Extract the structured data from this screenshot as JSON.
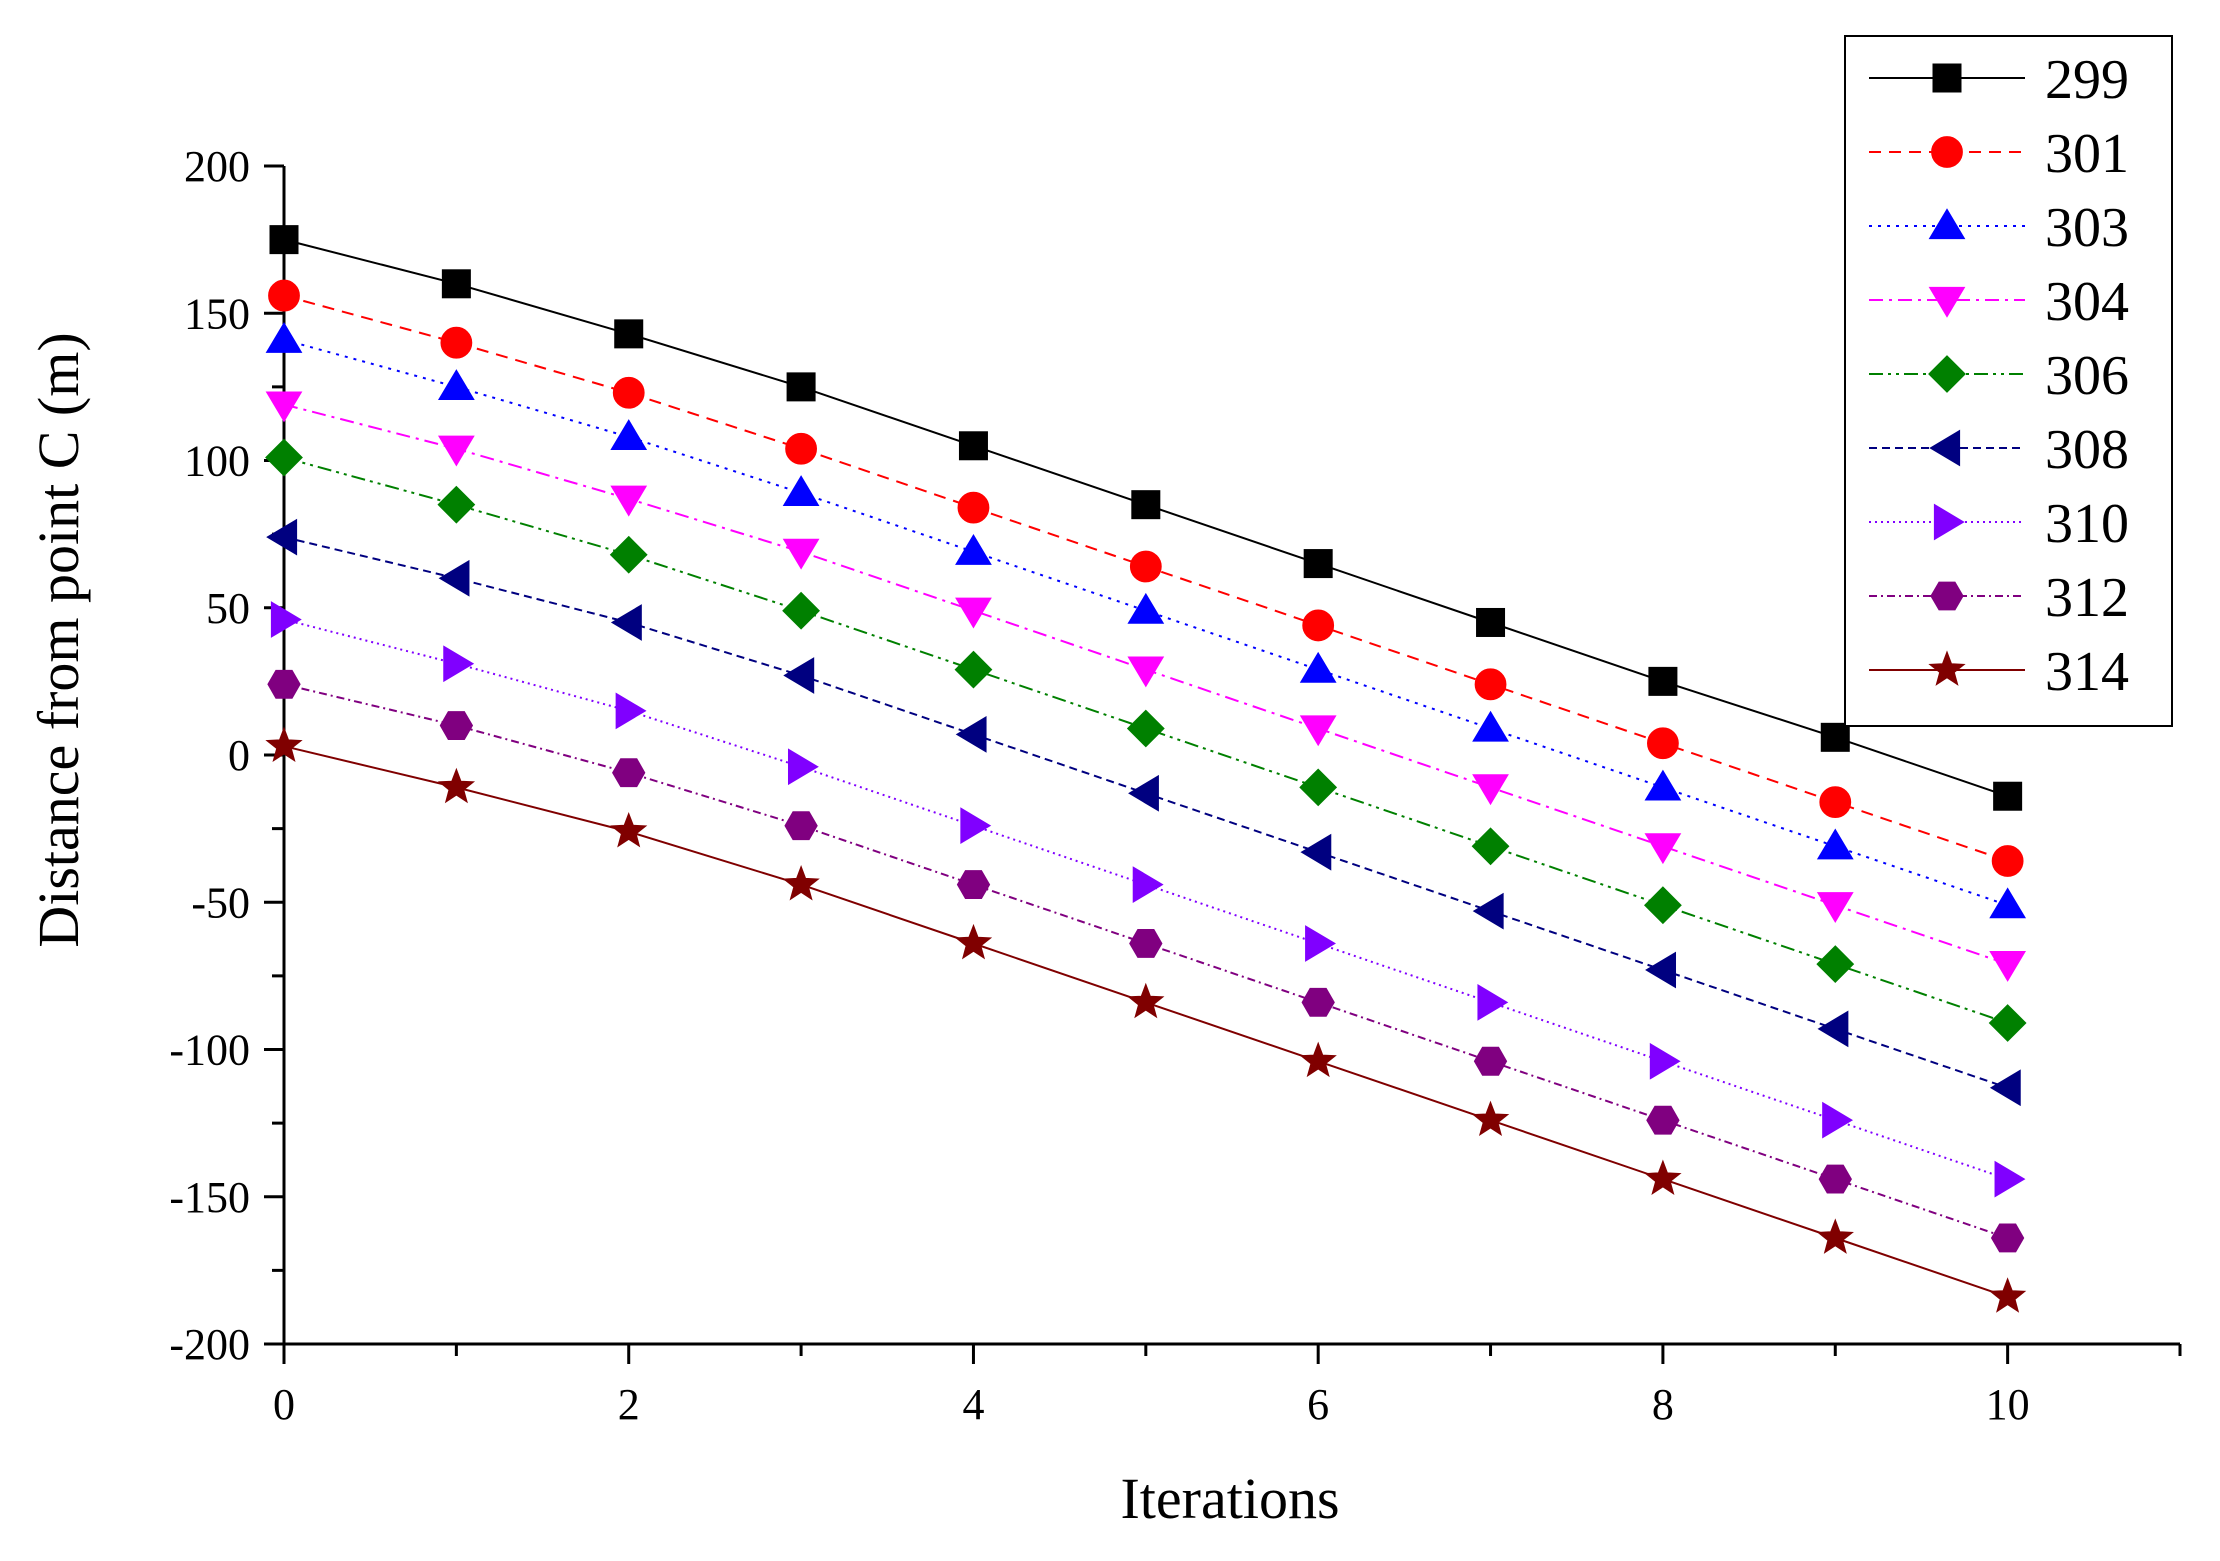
{
  "chart_data": {
    "type": "line",
    "title": "",
    "xlabel": "Iterations",
    "ylabel": "Distance from point C (m)",
    "xlim": [
      0,
      11
    ],
    "ylim": [
      -200,
      200
    ],
    "xticks": [
      0,
      2,
      4,
      6,
      8,
      10
    ],
    "yticks": [
      200,
      150,
      100,
      50,
      0,
      -50,
      -100,
      -150,
      -200
    ],
    "grid": false,
    "legend_position": "top-right",
    "x": [
      0,
      1,
      2,
      3,
      4,
      5,
      6,
      7,
      8,
      9,
      10
    ],
    "series": [
      {
        "name": "299",
        "color": "#000000",
        "marker": "square",
        "line": "solid",
        "values": [
          175,
          160,
          143,
          125,
          105,
          85,
          65,
          45,
          25,
          6,
          -14
        ]
      },
      {
        "name": "301",
        "color": "#ff0000",
        "marker": "circle",
        "line": "dash",
        "values": [
          156,
          140,
          123,
          104,
          84,
          64,
          44,
          24,
          4,
          -16,
          -36
        ]
      },
      {
        "name": "303",
        "color": "#0000ff",
        "marker": "triangle-up",
        "line": "dot",
        "values": [
          141,
          125,
          108,
          89,
          69,
          49,
          29,
          9,
          -11,
          -31,
          -51
        ]
      },
      {
        "name": "304",
        "color": "#ff00ff",
        "marker": "triangle-down",
        "line": "dashdot",
        "values": [
          119,
          104,
          87,
          69,
          49,
          29,
          9,
          -11,
          -31,
          -51,
          -71
        ]
      },
      {
        "name": "306",
        "color": "#008000",
        "marker": "diamond",
        "line": "dashdotdot",
        "values": [
          101,
          85,
          68,
          49,
          29,
          9,
          -11,
          -31,
          -51,
          -71,
          -91
        ]
      },
      {
        "name": "308",
        "color": "#000080",
        "marker": "triangle-left",
        "line": "shortdash",
        "values": [
          74,
          60,
          45,
          27,
          7,
          -13,
          -33,
          -53,
          -73,
          -93,
          -113
        ]
      },
      {
        "name": "310",
        "color": "#8000ff",
        "marker": "triangle-right",
        "line": "shortdot",
        "values": [
          46,
          31,
          15,
          -4,
          -24,
          -44,
          -64,
          -84,
          -104,
          -124,
          -144
        ]
      },
      {
        "name": "312",
        "color": "#800080",
        "marker": "hexagon",
        "line": "shortdashdot",
        "values": [
          24,
          10,
          -6,
          -24,
          -44,
          -64,
          -84,
          -104,
          -124,
          -144,
          -164
        ]
      },
      {
        "name": "314",
        "color": "#800000",
        "marker": "star",
        "line": "solid",
        "values": [
          3,
          -11,
          -26,
          -44,
          -64,
          -84,
          -104,
          -124,
          -144,
          -164,
          -184
        ]
      }
    ]
  }
}
